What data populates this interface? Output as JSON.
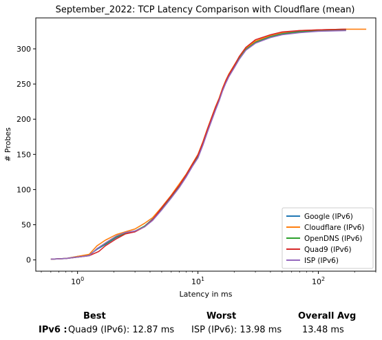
{
  "chart_data": {
    "type": "line",
    "title": "September_2022: TCP Latency Comparison with Cloudflare (mean)",
    "xlabel": "Latency in ms",
    "ylabel": "# Probes",
    "xscale": "log",
    "xlim": [
      0.45,
      300
    ],
    "ylim": [
      -16,
      344
    ],
    "xticks": [
      1,
      10,
      100
    ],
    "xtick_labels": [
      "10^0",
      "10^1",
      "10^2"
    ],
    "yticks": [
      0,
      50,
      100,
      150,
      200,
      250,
      300
    ],
    "grid": false,
    "legend_position": "lower-right",
    "series": [
      {
        "name": "Google (IPv6)",
        "color": "#1f77b4",
        "points": [
          [
            0.6,
            1
          ],
          [
            0.8,
            2
          ],
          [
            1.0,
            5
          ],
          [
            1.25,
            7
          ],
          [
            1.45,
            15
          ],
          [
            1.7,
            22
          ],
          [
            2.1,
            32
          ],
          [
            2.5,
            38
          ],
          [
            3.0,
            40
          ],
          [
            3.6,
            48
          ],
          [
            4.2,
            58
          ],
          [
            5.0,
            72
          ],
          [
            6.0,
            90
          ],
          [
            7.0,
            105
          ],
          [
            8.0,
            120
          ],
          [
            9.0,
            135
          ],
          [
            10,
            148
          ],
          [
            11,
            165
          ],
          [
            12,
            185
          ],
          [
            13,
            200
          ],
          [
            14,
            215
          ],
          [
            15,
            228
          ],
          [
            16,
            242
          ],
          [
            17,
            253
          ],
          [
            18,
            262
          ],
          [
            20,
            275
          ],
          [
            22,
            287
          ],
          [
            25,
            300
          ],
          [
            30,
            310
          ],
          [
            40,
            318
          ],
          [
            50,
            322
          ],
          [
            70,
            325
          ],
          [
            100,
            327
          ],
          [
            170,
            328
          ]
        ]
      },
      {
        "name": "Cloudflare (IPv6)",
        "color": "#ff7f0e",
        "points": [
          [
            0.6,
            1
          ],
          [
            0.8,
            2
          ],
          [
            1.0,
            5
          ],
          [
            1.25,
            8
          ],
          [
            1.45,
            20
          ],
          [
            1.7,
            28
          ],
          [
            2.1,
            36
          ],
          [
            2.5,
            40
          ],
          [
            3.0,
            44
          ],
          [
            3.6,
            52
          ],
          [
            4.2,
            60
          ],
          [
            5.0,
            75
          ],
          [
            6.0,
            92
          ],
          [
            7.0,
            108
          ],
          [
            8.0,
            122
          ],
          [
            9.0,
            137
          ],
          [
            10,
            150
          ],
          [
            11,
            168
          ],
          [
            12,
            187
          ],
          [
            13,
            203
          ],
          [
            14,
            218
          ],
          [
            15,
            230
          ],
          [
            16,
            244
          ],
          [
            17,
            255
          ],
          [
            18,
            264
          ],
          [
            20,
            277
          ],
          [
            22,
            288
          ],
          [
            25,
            301
          ],
          [
            30,
            311
          ],
          [
            40,
            319
          ],
          [
            50,
            323
          ],
          [
            70,
            326
          ],
          [
            100,
            327
          ],
          [
            170,
            328
          ],
          [
            250,
            328
          ]
        ]
      },
      {
        "name": "OpenDNS (IPv6)",
        "color": "#2ca02c",
        "points": [
          [
            0.6,
            1
          ],
          [
            0.8,
            2
          ],
          [
            1.0,
            4
          ],
          [
            1.25,
            6
          ],
          [
            1.45,
            16
          ],
          [
            1.7,
            23
          ],
          [
            2.1,
            33
          ],
          [
            2.5,
            38
          ],
          [
            3.0,
            41
          ],
          [
            3.6,
            48
          ],
          [
            4.2,
            57
          ],
          [
            5.0,
            72
          ],
          [
            6.0,
            89
          ],
          [
            7.0,
            104
          ],
          [
            8.0,
            119
          ],
          [
            9.0,
            134
          ],
          [
            10,
            146
          ],
          [
            11,
            164
          ],
          [
            12,
            183
          ],
          [
            13,
            199
          ],
          [
            14,
            214
          ],
          [
            15,
            227
          ],
          [
            16,
            241
          ],
          [
            17,
            252
          ],
          [
            18,
            261
          ],
          [
            20,
            274
          ],
          [
            22,
            286
          ],
          [
            25,
            299
          ],
          [
            30,
            309
          ],
          [
            40,
            317
          ],
          [
            50,
            321
          ],
          [
            70,
            324
          ],
          [
            100,
            326
          ],
          [
            170,
            327
          ]
        ]
      },
      {
        "name": "Quad9 (IPv6)",
        "color": "#d62728",
        "points": [
          [
            0.6,
            1
          ],
          [
            0.8,
            2
          ],
          [
            1.0,
            4
          ],
          [
            1.25,
            6
          ],
          [
            1.5,
            12
          ],
          [
            1.7,
            20
          ],
          [
            2.1,
            30
          ],
          [
            2.5,
            37
          ],
          [
            3.0,
            40
          ],
          [
            3.6,
            47
          ],
          [
            4.2,
            57
          ],
          [
            5.0,
            74
          ],
          [
            6.0,
            91
          ],
          [
            7.0,
            106
          ],
          [
            8.0,
            121
          ],
          [
            9.0,
            136
          ],
          [
            10,
            149
          ],
          [
            11,
            167
          ],
          [
            12,
            186
          ],
          [
            13,
            202
          ],
          [
            14,
            217
          ],
          [
            15,
            229
          ],
          [
            16,
            243
          ],
          [
            17,
            254
          ],
          [
            18,
            263
          ],
          [
            20,
            276
          ],
          [
            22,
            289
          ],
          [
            25,
            302
          ],
          [
            30,
            313
          ],
          [
            40,
            320
          ],
          [
            50,
            324
          ],
          [
            70,
            326
          ],
          [
            100,
            327
          ],
          [
            170,
            328
          ]
        ]
      },
      {
        "name": "ISP (IPv6)",
        "color": "#9467bd",
        "points": [
          [
            0.6,
            1
          ],
          [
            0.8,
            2
          ],
          [
            1.0,
            4
          ],
          [
            1.25,
            6
          ],
          [
            1.45,
            16
          ],
          [
            1.7,
            24
          ],
          [
            2.1,
            34
          ],
          [
            2.5,
            39
          ],
          [
            3.0,
            41
          ],
          [
            3.6,
            47
          ],
          [
            4.2,
            56
          ],
          [
            5.0,
            71
          ],
          [
            6.0,
            88
          ],
          [
            7.0,
            103
          ],
          [
            8.0,
            118
          ],
          [
            9.0,
            133
          ],
          [
            10,
            145
          ],
          [
            11,
            163
          ],
          [
            12,
            182
          ],
          [
            13,
            198
          ],
          [
            14,
            213
          ],
          [
            15,
            226
          ],
          [
            16,
            240
          ],
          [
            17,
            251
          ],
          [
            18,
            260
          ],
          [
            20,
            273
          ],
          [
            22,
            285
          ],
          [
            25,
            298
          ],
          [
            30,
            308
          ],
          [
            40,
            316
          ],
          [
            50,
            320
          ],
          [
            70,
            323
          ],
          [
            100,
            325
          ],
          [
            170,
            326
          ]
        ]
      }
    ]
  },
  "summary": {
    "best_header": "Best",
    "worst_header": "Worst",
    "avg_header": "Overall Avg",
    "row_label": "IPv6 :",
    "best_value": "Quad9 (IPv6): 12.87 ms",
    "worst_value": "ISP (IPv6): 13.98 ms",
    "avg_value": "13.48 ms"
  }
}
